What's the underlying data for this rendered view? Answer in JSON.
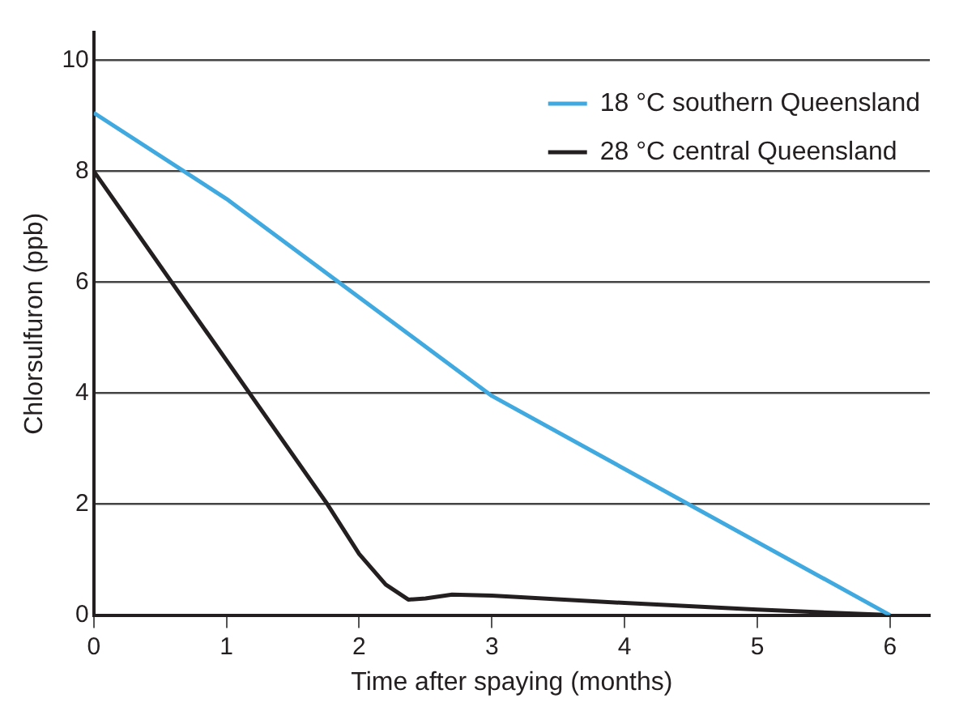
{
  "chart_data": {
    "type": "line",
    "xlabel": "Time after spaying (months)",
    "ylabel": "Chlorsulfuron (ppb)",
    "xlim": [
      0,
      6.3
    ],
    "xticks": [
      0,
      1,
      2,
      3,
      4,
      5,
      6
    ],
    "ylim": [
      0,
      10.5
    ],
    "yticks": [
      0,
      2,
      4,
      6,
      8,
      10
    ],
    "grid": "y",
    "legend": "top right",
    "marker": "none",
    "line_style": "solid",
    "series": [
      {
        "name": "18 °C southern Queensland",
        "color": "#3fa9e0",
        "x": [
          0,
          1,
          3,
          6
        ],
        "values": [
          9.05,
          7.5,
          3.95,
          0
        ]
      },
      {
        "name": "28 °C central Queensland",
        "color": "#231f20",
        "x": [
          0,
          1.76,
          2,
          2.2,
          2.37,
          2.5,
          2.7,
          3,
          4,
          5,
          6
        ],
        "values": [
          8,
          2,
          1.1,
          0.55,
          0.28,
          0.3,
          0.37,
          0.35,
          0.22,
          0.1,
          0
        ]
      }
    ]
  }
}
